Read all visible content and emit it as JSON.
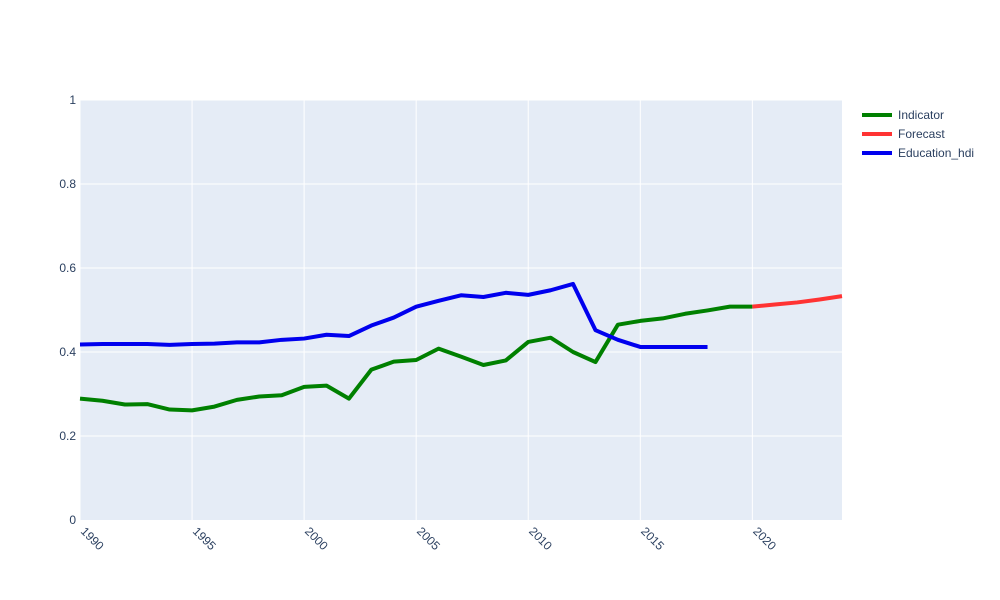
{
  "chart_data": {
    "type": "line",
    "title": "",
    "xlabel": "",
    "ylabel": "",
    "xlim": [
      1990,
      2024
    ],
    "ylim": [
      0,
      1
    ],
    "x_ticks": [
      "1990",
      "1995",
      "2000",
      "2005",
      "2010",
      "2015",
      "2020"
    ],
    "y_ticks": [
      "0",
      "0.2",
      "0.4",
      "0.6",
      "0.8",
      "1"
    ],
    "grid": true,
    "legend_position": "top-right",
    "plot_background": "#e5ecf6",
    "series": [
      {
        "name": "Indicator",
        "color": "#008000",
        "x": [
          1990,
          1991,
          1992,
          1993,
          1994,
          1995,
          1996,
          1997,
          1998,
          1999,
          2000,
          2001,
          2002,
          2003,
          2004,
          2005,
          2006,
          2007,
          2008,
          2009,
          2010,
          2011,
          2012,
          2013,
          2014,
          2015,
          2016,
          2017,
          2018,
          2019,
          2020
        ],
        "values": [
          0.289,
          0.284,
          0.275,
          0.276,
          0.263,
          0.261,
          0.27,
          0.286,
          0.294,
          0.297,
          0.317,
          0.32,
          0.289,
          0.358,
          0.377,
          0.381,
          0.408,
          0.389,
          0.369,
          0.38,
          0.424,
          0.434,
          0.4,
          0.376,
          0.465,
          0.474,
          0.48,
          0.491,
          0.499,
          0.508,
          0.508
        ]
      },
      {
        "name": "Forecast",
        "color": "#ff3333",
        "x": [
          2020,
          2021,
          2022,
          2023,
          2024
        ],
        "values": [
          0.508,
          0.513,
          0.518,
          0.525,
          0.533
        ]
      },
      {
        "name": "Education_hdi",
        "color": "#0000ee",
        "x": [
          1990,
          1991,
          1992,
          1993,
          1994,
          1995,
          1996,
          1997,
          1998,
          1999,
          2000,
          2001,
          2002,
          2003,
          2004,
          2005,
          2006,
          2007,
          2008,
          2009,
          2010,
          2011,
          2012,
          2013,
          2014,
          2015,
          2016,
          2017,
          2018
        ],
        "values": [
          0.418,
          0.419,
          0.419,
          0.419,
          0.417,
          0.419,
          0.42,
          0.423,
          0.423,
          0.429,
          0.432,
          0.441,
          0.438,
          0.463,
          0.482,
          0.508,
          0.522,
          0.535,
          0.531,
          0.541,
          0.536,
          0.547,
          0.562,
          0.452,
          0.429,
          0.412,
          0.412,
          0.412,
          0.412
        ]
      }
    ]
  }
}
